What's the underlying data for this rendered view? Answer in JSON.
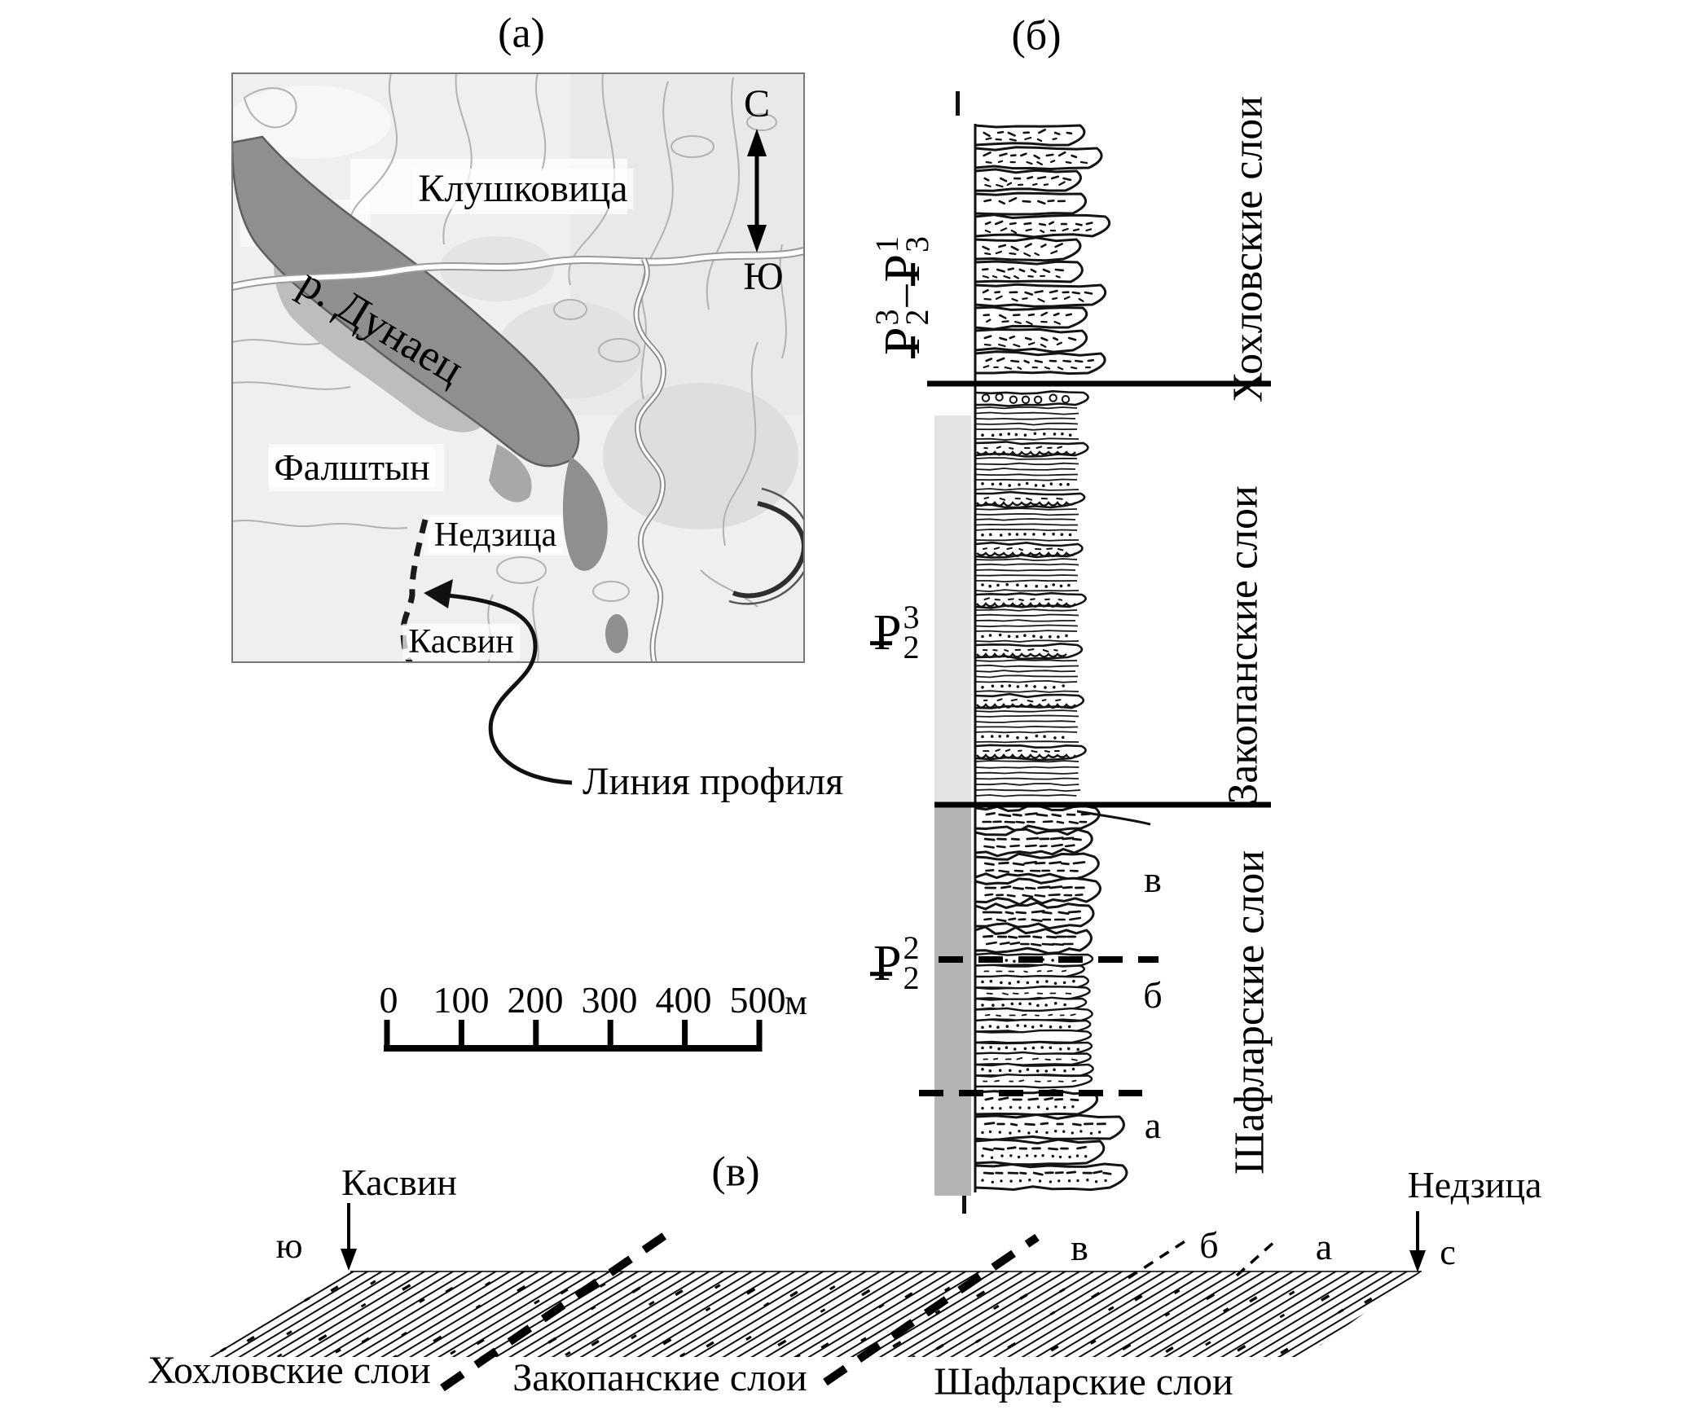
{
  "figure": {
    "panel_a_label": "(а)",
    "panel_b_label": "(б)",
    "panel_v_label": "(в)"
  },
  "map": {
    "town_klushkovitsa": "Клушковица",
    "river_label": "р. Дунаец",
    "town_falshtyn": "Фалштын",
    "town_nedzitsa": "Недзица",
    "town_kasvin": "Касвин",
    "compass_north": "С",
    "compass_south": "Ю",
    "profile_caption": "Линия профиля"
  },
  "column": {
    "age_top": {
      "p_left": "P",
      "sup_left": "3",
      "sub_left": "2",
      "dash": "–",
      "p_right": "P",
      "sup_right": "1",
      "sub_right": "3"
    },
    "age_mid": {
      "p": "P",
      "sup": "3",
      "sub": "2"
    },
    "age_low": {
      "p": "P",
      "sup": "2",
      "sub": "2"
    },
    "unit_top": "Хохловские слои",
    "unit_mid": "Закопанские слои",
    "unit_low": "Шафларские слои",
    "sub_v": "в",
    "sub_b": "б",
    "sub_a": "а"
  },
  "scalebar": {
    "ticks": [
      "0",
      "100",
      "200",
      "300",
      "400",
      "500"
    ],
    "unit": "м"
  },
  "profile": {
    "station_left": "Касвин",
    "dir_left": "ю",
    "station_right": "Недзица",
    "dir_right": "с",
    "sub_v": "в",
    "sub_b": "б",
    "sub_a": "а",
    "layer_left": "Хохловские слои",
    "layer_mid": "Закопанские слои",
    "layer_right": "Шафларские слои"
  }
}
